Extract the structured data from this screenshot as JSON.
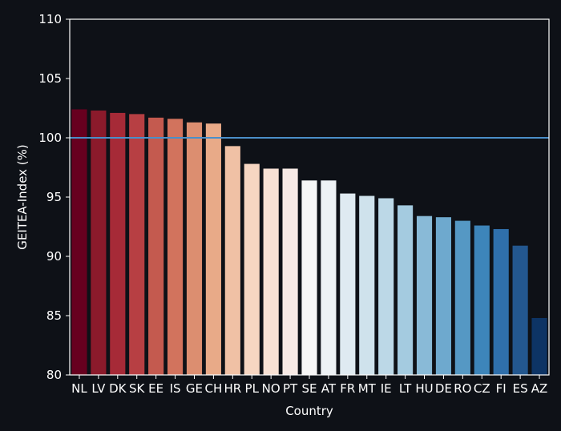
{
  "chart_data": {
    "type": "bar",
    "title": "",
    "xlabel": "Country",
    "ylabel": "GEITEA-Index (%)",
    "ylim": [
      80,
      110
    ],
    "yticks": [
      80,
      85,
      90,
      95,
      100,
      105,
      110
    ],
    "grid": false,
    "reference_line": {
      "value": 100,
      "color": "#4a8fc9"
    },
    "categories": [
      "NL",
      "LV",
      "DK",
      "SK",
      "EE",
      "IS",
      "GE",
      "CH",
      "HR",
      "PL",
      "NO",
      "PT",
      "SE",
      "AT",
      "FR",
      "MT",
      "IE",
      "LT",
      "HU",
      "DE",
      "RO",
      "CZ",
      "FI",
      "ES",
      "AZ"
    ],
    "values": [
      102.4,
      102.3,
      102.1,
      102.0,
      101.7,
      101.6,
      101.3,
      101.2,
      99.3,
      97.8,
      97.4,
      97.4,
      96.4,
      96.4,
      95.3,
      95.1,
      94.9,
      94.3,
      93.4,
      93.3,
      93.0,
      92.6,
      92.3,
      90.9,
      84.8
    ],
    "colors": [
      "#67001f",
      "#8b1a2b",
      "#a62a37",
      "#b73f43",
      "#c45a4f",
      "#d2735d",
      "#dc8e70",
      "#e8aa88",
      "#f0c1a5",
      "#f6d6c2",
      "#f7e1d4",
      "#f7eae6",
      "#f6f6f6",
      "#eef2f5",
      "#dfeaf1",
      "#cfe2ec",
      "#bcd8e7",
      "#a4cbe0",
      "#89bad7",
      "#6ea9ce",
      "#5598c4",
      "#3d85ba",
      "#2f6fab",
      "#23578f",
      "#0d3465"
    ]
  },
  "colors": {
    "background": "#0e1117",
    "axis": "#ffffff"
  }
}
